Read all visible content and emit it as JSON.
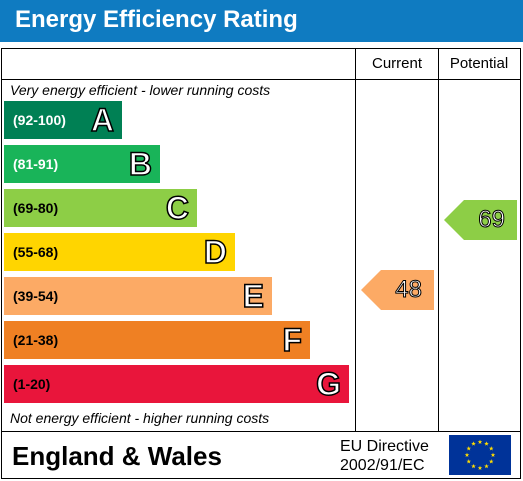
{
  "header": {
    "title": "Energy Efficiency Rating"
  },
  "columns": {
    "current": "Current",
    "potential": "Potential"
  },
  "notes": {
    "top": "Very energy efficient - lower running costs",
    "bottom": "Not energy efficient - higher running costs"
  },
  "bands": [
    {
      "range": "(92-100)",
      "letter": "A",
      "color": "#008054"
    },
    {
      "range": "(81-91)",
      "letter": "B",
      "color": "#19b459"
    },
    {
      "range": "(69-80)",
      "letter": "C",
      "color": "#8dce46"
    },
    {
      "range": "(55-68)",
      "letter": "D",
      "color": "#ffd500"
    },
    {
      "range": "(39-54)",
      "letter": "E",
      "color": "#fcaa65"
    },
    {
      "range": "(21-38)",
      "letter": "F",
      "color": "#ef8023"
    },
    {
      "range": "(1-20)",
      "letter": "G",
      "color": "#e9153b"
    }
  ],
  "ratings": {
    "current": {
      "value": "48",
      "band": "E",
      "color": "#fcaa65"
    },
    "potential": {
      "value": "69",
      "band": "C",
      "color": "#8dce46"
    }
  },
  "footer": {
    "region": "England & Wales",
    "directive_line1": "EU Directive",
    "directive_line2": "2002/91/EC",
    "flag_icon": "eu-flag-icon",
    "flag_color": "#003399",
    "star_color": "#ffdd00"
  }
}
